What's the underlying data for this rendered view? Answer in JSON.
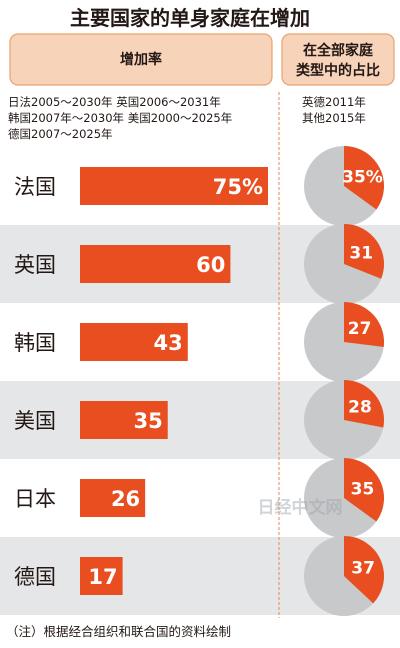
{
  "chart_data": {
    "type": "bar",
    "title": "主要国家的单身家庭在增加",
    "bar_header": "增加率",
    "pie_header": [
      "在全部家庭",
      "类型中的占比"
    ],
    "periods": [
      "日法2005～2030年  英国2006～2031年",
      "韩国2007年～2030年  美国2000～2025年",
      "德国2007～2025年"
    ],
    "pie_periods": [
      "英德2011年",
      "其他2015年"
    ],
    "categories": [
      "法国",
      "英国",
      "韩国",
      "美国",
      "日本",
      "德国"
    ],
    "increase_rate": [
      75,
      60,
      43,
      35,
      26,
      17
    ],
    "increase_labels": [
      "75%",
      "60",
      "43",
      "35",
      "26",
      "17"
    ],
    "share": [
      35,
      31,
      27,
      28,
      35,
      37
    ],
    "share_labels": [
      "35%",
      "31",
      "27",
      "28",
      "35",
      "37"
    ],
    "xlim": [
      0,
      75
    ],
    "note": "（注）根据经合组织和联合国的资料绘制",
    "watermark": "日经中文网",
    "colors": {
      "bar": "#e84e1f",
      "header_bg": "#f6d3b9",
      "header_border": "#e9a36f",
      "row_alt": "#e5e6e7",
      "pie_bg": "#c8c9ca",
      "pie_fill": "#e84e1f",
      "divider": "#e58a4e"
    }
  }
}
